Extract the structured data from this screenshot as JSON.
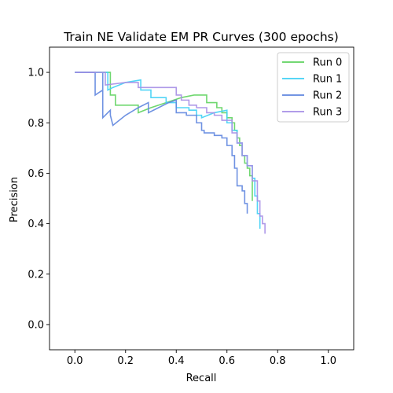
{
  "chart_data": {
    "type": "line",
    "title": "Train NE Validate EM PR Curves (300 epochs)",
    "xlabel": "Recall",
    "ylabel": "Precision",
    "xlim": [
      -0.1,
      1.1
    ],
    "ylim": [
      -0.1,
      1.1
    ],
    "xticks": [
      "0.0",
      "0.2",
      "0.4",
      "0.6",
      "0.8",
      "1.0"
    ],
    "yticks": [
      "0.0",
      "0.2",
      "0.4",
      "0.6",
      "0.8",
      "1.0"
    ],
    "grid": false,
    "legend_position": "top-right",
    "series": [
      {
        "name": "Run 0",
        "color": "#5fd35f",
        "points": [
          [
            0.0,
            1.0
          ],
          [
            0.14,
            1.0
          ],
          [
            0.14,
            0.91
          ],
          [
            0.16,
            0.91
          ],
          [
            0.16,
            0.87
          ],
          [
            0.25,
            0.87
          ],
          [
            0.25,
            0.84
          ],
          [
            0.3,
            0.86
          ],
          [
            0.36,
            0.88
          ],
          [
            0.42,
            0.9
          ],
          [
            0.47,
            0.91
          ],
          [
            0.52,
            0.91
          ],
          [
            0.52,
            0.88
          ],
          [
            0.56,
            0.88
          ],
          [
            0.56,
            0.86
          ],
          [
            0.58,
            0.86
          ],
          [
            0.58,
            0.84
          ],
          [
            0.6,
            0.84
          ],
          [
            0.6,
            0.82
          ],
          [
            0.62,
            0.82
          ],
          [
            0.62,
            0.8
          ],
          [
            0.63,
            0.8
          ],
          [
            0.63,
            0.77
          ],
          [
            0.64,
            0.77
          ],
          [
            0.64,
            0.74
          ],
          [
            0.65,
            0.74
          ],
          [
            0.65,
            0.71
          ],
          [
            0.66,
            0.71
          ],
          [
            0.66,
            0.67
          ],
          [
            0.67,
            0.67
          ],
          [
            0.67,
            0.64
          ],
          [
            0.68,
            0.64
          ],
          [
            0.68,
            0.62
          ],
          [
            0.69,
            0.62
          ],
          [
            0.69,
            0.59
          ],
          [
            0.7,
            0.59
          ],
          [
            0.7,
            0.55
          ],
          [
            0.7,
            0.52
          ],
          [
            0.7,
            0.49
          ]
        ]
      },
      {
        "name": "Run 1",
        "color": "#3fd0f5",
        "points": [
          [
            0.0,
            1.0
          ],
          [
            0.13,
            1.0
          ],
          [
            0.13,
            0.93
          ],
          [
            0.15,
            0.94
          ],
          [
            0.2,
            0.96
          ],
          [
            0.26,
            0.97
          ],
          [
            0.26,
            0.93
          ],
          [
            0.3,
            0.93
          ],
          [
            0.3,
            0.9
          ],
          [
            0.36,
            0.9
          ],
          [
            0.36,
            0.88
          ],
          [
            0.4,
            0.88
          ],
          [
            0.4,
            0.86
          ],
          [
            0.45,
            0.86
          ],
          [
            0.45,
            0.85
          ],
          [
            0.48,
            0.85
          ],
          [
            0.48,
            0.83
          ],
          [
            0.5,
            0.83
          ],
          [
            0.5,
            0.82
          ],
          [
            0.55,
            0.84
          ],
          [
            0.6,
            0.85
          ],
          [
            0.6,
            0.8
          ],
          [
            0.62,
            0.8
          ],
          [
            0.62,
            0.77
          ],
          [
            0.64,
            0.77
          ],
          [
            0.64,
            0.72
          ],
          [
            0.66,
            0.72
          ],
          [
            0.66,
            0.67
          ],
          [
            0.68,
            0.67
          ],
          [
            0.68,
            0.63
          ],
          [
            0.7,
            0.63
          ],
          [
            0.7,
            0.58
          ],
          [
            0.71,
            0.58
          ],
          [
            0.71,
            0.51
          ],
          [
            0.72,
            0.51
          ],
          [
            0.72,
            0.44
          ],
          [
            0.73,
            0.44
          ],
          [
            0.73,
            0.38
          ]
        ]
      },
      {
        "name": "Run 2",
        "color": "#5f86df",
        "points": [
          [
            0.0,
            1.0
          ],
          [
            0.08,
            1.0
          ],
          [
            0.08,
            0.91
          ],
          [
            0.11,
            0.93
          ],
          [
            0.11,
            1.0
          ],
          [
            0.11,
            0.82
          ],
          [
            0.14,
            0.85
          ],
          [
            0.14,
            0.83
          ],
          [
            0.15,
            0.79
          ],
          [
            0.2,
            0.83
          ],
          [
            0.25,
            0.86
          ],
          [
            0.29,
            0.88
          ],
          [
            0.29,
            0.84
          ],
          [
            0.33,
            0.86
          ],
          [
            0.37,
            0.88
          ],
          [
            0.4,
            0.89
          ],
          [
            0.4,
            0.84
          ],
          [
            0.44,
            0.84
          ],
          [
            0.44,
            0.83
          ],
          [
            0.48,
            0.83
          ],
          [
            0.48,
            0.8
          ],
          [
            0.5,
            0.8
          ],
          [
            0.5,
            0.77
          ],
          [
            0.51,
            0.77
          ],
          [
            0.51,
            0.76
          ],
          [
            0.55,
            0.76
          ],
          [
            0.55,
            0.75
          ],
          [
            0.58,
            0.75
          ],
          [
            0.58,
            0.74
          ],
          [
            0.6,
            0.74
          ],
          [
            0.6,
            0.71
          ],
          [
            0.62,
            0.71
          ],
          [
            0.62,
            0.67
          ],
          [
            0.63,
            0.67
          ],
          [
            0.63,
            0.62
          ],
          [
            0.64,
            0.62
          ],
          [
            0.64,
            0.55
          ],
          [
            0.66,
            0.55
          ],
          [
            0.66,
            0.53
          ],
          [
            0.67,
            0.53
          ],
          [
            0.67,
            0.48
          ],
          [
            0.68,
            0.48
          ],
          [
            0.68,
            0.44
          ]
        ]
      },
      {
        "name": "Run 3",
        "color": "#a68ee6",
        "points": [
          [
            0.0,
            1.0
          ],
          [
            0.12,
            1.0
          ],
          [
            0.12,
            0.95
          ],
          [
            0.2,
            0.96
          ],
          [
            0.25,
            0.96
          ],
          [
            0.25,
            0.94
          ],
          [
            0.4,
            0.94
          ],
          [
            0.4,
            0.91
          ],
          [
            0.42,
            0.91
          ],
          [
            0.42,
            0.89
          ],
          [
            0.45,
            0.89
          ],
          [
            0.45,
            0.87
          ],
          [
            0.48,
            0.87
          ],
          [
            0.48,
            0.86
          ],
          [
            0.52,
            0.86
          ],
          [
            0.52,
            0.84
          ],
          [
            0.55,
            0.84
          ],
          [
            0.55,
            0.83
          ],
          [
            0.58,
            0.83
          ],
          [
            0.58,
            0.81
          ],
          [
            0.62,
            0.81
          ],
          [
            0.62,
            0.76
          ],
          [
            0.64,
            0.76
          ],
          [
            0.64,
            0.72
          ],
          [
            0.66,
            0.72
          ],
          [
            0.66,
            0.67
          ],
          [
            0.68,
            0.67
          ],
          [
            0.68,
            0.63
          ],
          [
            0.7,
            0.63
          ],
          [
            0.7,
            0.57
          ],
          [
            0.72,
            0.57
          ],
          [
            0.72,
            0.49
          ],
          [
            0.73,
            0.49
          ],
          [
            0.73,
            0.43
          ],
          [
            0.74,
            0.43
          ],
          [
            0.74,
            0.4
          ],
          [
            0.75,
            0.4
          ],
          [
            0.75,
            0.36
          ]
        ]
      }
    ]
  }
}
